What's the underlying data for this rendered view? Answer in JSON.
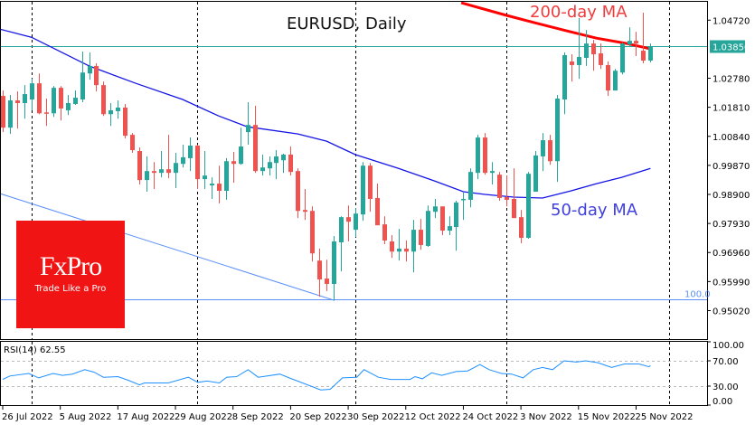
{
  "chart_data": {
    "type": "candlestick",
    "title": "EURUSD, Daily",
    "symbol": "EURUSD",
    "timeframe": "Daily",
    "ylim": [
      0.945,
      1.0539
    ],
    "price_ticks": [
      "1.04720",
      "1.02780",
      "1.01810",
      "1.00840",
      "0.99870",
      "0.98900",
      "0.97930",
      "0.96960",
      "0.95990",
      "0.95020"
    ],
    "current_price": "1.03850",
    "date_labels": [
      {
        "i": 0,
        "label": "26 Jul 2022"
      },
      {
        "i": 8,
        "label": "5 Aug 2022"
      },
      {
        "i": 16,
        "label": "17 Aug 2022"
      },
      {
        "i": 24,
        "label": "29 Aug 2022"
      },
      {
        "i": 32,
        "label": "8 Sep 2022"
      },
      {
        "i": 40,
        "label": "20 Sep 2022"
      },
      {
        "i": 48,
        "label": "30 Sep 2022"
      },
      {
        "i": 56,
        "label": "12 Oct 2022"
      },
      {
        "i": 64,
        "label": "24 Oct 2022"
      },
      {
        "i": 72,
        "label": "3 Nov 2022"
      },
      {
        "i": 80,
        "label": "15 Nov 2022"
      },
      {
        "i": 88,
        "label": "25 Nov 2022"
      }
    ],
    "period_separators": [
      4,
      27,
      49,
      70,
      92.6
    ],
    "ohlc": [
      [
        1.0219,
        1.0237,
        1.0098,
        1.0113
      ],
      [
        1.0113,
        1.0222,
        1.0092,
        1.0204
      ],
      [
        1.0204,
        1.0234,
        1.011,
        1.0195
      ],
      [
        1.0195,
        1.0255,
        1.0143,
        1.0225
      ],
      [
        1.0207,
        1.0276,
        1.0171,
        1.0261
      ],
      [
        1.0261,
        1.0294,
        1.0158,
        1.0161
      ],
      [
        1.0164,
        1.021,
        1.0119,
        1.0161
      ],
      [
        1.0161,
        1.0252,
        1.0149,
        1.0246
      ],
      [
        1.0246,
        1.0252,
        1.0137,
        1.0177
      ],
      [
        1.0171,
        1.0222,
        1.0155,
        1.0195
      ],
      [
        1.0192,
        1.0237,
        1.0189,
        1.0213
      ],
      [
        1.0207,
        1.0367,
        1.0198,
        1.0297
      ],
      [
        1.0294,
        1.0364,
        1.0273,
        1.0319
      ],
      [
        1.0319,
        1.0328,
        1.0234,
        1.0255
      ],
      [
        1.0255,
        1.0267,
        1.0152,
        1.0158
      ],
      [
        1.0158,
        1.0195,
        1.0119,
        1.0171
      ],
      [
        1.0168,
        1.0204,
        1.0143,
        1.018
      ],
      [
        1.018,
        1.0192,
        1.0077,
        1.0086
      ],
      [
        1.0089,
        1.0095,
        1.0029,
        1.0038
      ],
      [
        1.0035,
        1.0047,
        0.9923,
        0.9938
      ],
      [
        0.9938,
        1.0017,
        0.9899,
        0.9968
      ],
      [
        0.9968,
        0.9998,
        0.9908,
        0.9962
      ],
      [
        0.9962,
        1.0035,
        0.9947,
        0.9974
      ],
      [
        0.9974,
        1.0089,
        0.9944,
        0.9962
      ],
      [
        0.9962,
        1.0029,
        0.9911,
        0.9995
      ],
      [
        0.9992,
        1.0056,
        0.998,
        1.0014
      ],
      [
        1.0011,
        1.008,
        0.9968,
        1.0053
      ],
      [
        1.0053,
        1.0056,
        0.9908,
        0.9941
      ],
      [
        0.9941,
        1.0035,
        0.9908,
        0.9953
      ],
      [
        0.992,
        0.9947,
        0.9875,
        0.9926
      ],
      [
        0.9926,
        0.9986,
        0.986,
        0.9902
      ],
      [
        0.9902,
        1.0011,
        0.9872,
        1.0001
      ],
      [
        1.0001,
        1.0032,
        0.9929,
        0.9992
      ],
      [
        0.9992,
        1.0113,
        0.9989,
        1.005
      ],
      [
        1.0098,
        1.0198,
        1.0056,
        1.0122
      ],
      [
        1.0122,
        1.0186,
        0.9962,
        0.9968
      ],
      [
        0.9968,
        1.0023,
        0.9953,
        0.998
      ],
      [
        0.9977,
        1.0017,
        0.9953,
        0.9998
      ],
      [
        0.9995,
        1.0038,
        0.9941,
        1.0017
      ],
      [
        1.0004,
        1.0026,
        0.9962,
        1.0023
      ],
      [
        1.0023,
        1.005,
        0.9953,
        0.9965
      ],
      [
        0.9968,
        0.9977,
        0.9811,
        0.9835
      ],
      [
        0.9838,
        0.9908,
        0.9805,
        0.9832
      ],
      [
        0.9835,
        0.985,
        0.9666,
        0.9693
      ],
      [
        0.9669,
        0.9709,
        0.9548,
        0.9606
      ],
      [
        0.9609,
        0.9672,
        0.9567,
        0.9591
      ],
      [
        0.9591,
        0.9751,
        0.9536,
        0.9733
      ],
      [
        0.973,
        0.9817,
        0.9633,
        0.9814
      ],
      [
        0.9814,
        0.9853,
        0.9733,
        0.9799
      ],
      [
        0.9772,
        0.9844,
        0.9748,
        0.9826
      ],
      [
        0.9823,
        0.9998,
        0.9802,
        0.9986
      ],
      [
        0.9986,
        0.9995,
        0.9832,
        0.9875
      ],
      [
        0.9878,
        0.9926,
        0.9787,
        0.9787
      ],
      [
        0.979,
        0.9817,
        0.9724,
        0.9736
      ],
      [
        0.9733,
        0.9754,
        0.9678,
        0.9699
      ],
      [
        0.9699,
        0.9775,
        0.9669,
        0.9709
      ],
      [
        0.9709,
        0.9736,
        0.9666,
        0.9699
      ],
      [
        0.9699,
        0.9805,
        0.963,
        0.9772
      ],
      [
        0.9772,
        0.9808,
        0.9705,
        0.9721
      ],
      [
        0.9718,
        0.9853,
        0.9715,
        0.9835
      ],
      [
        0.9832,
        0.9875,
        0.9811,
        0.985
      ],
      [
        0.985,
        0.985,
        0.9754,
        0.9769
      ],
      [
        0.9769,
        0.9817,
        0.9754,
        0.9784
      ],
      [
        0.9781,
        0.9869,
        0.9702,
        0.9863
      ],
      [
        0.9872,
        0.9896,
        0.9805,
        0.9875
      ],
      [
        0.9872,
        0.9977,
        0.9847,
        0.9965
      ],
      [
        0.9962,
        1.0089,
        0.9941,
        1.008
      ],
      [
        1.008,
        1.0095,
        0.9956,
        0.9962
      ],
      [
        0.9962,
        0.9998,
        0.9923,
        0.9968
      ],
      [
        0.9956,
        0.9965,
        0.9869,
        0.9878
      ],
      [
        0.9881,
        0.9953,
        0.985,
        0.9872
      ],
      [
        0.9875,
        0.9977,
        0.9811,
        0.9811
      ],
      [
        0.9814,
        0.9838,
        0.9727,
        0.9745
      ],
      [
        0.9745,
        0.9965,
        0.9742,
        0.9959
      ],
      [
        0.9899,
        1.0035,
        0.9899,
        1.002
      ],
      [
        1.0017,
        1.0095,
        0.9968,
        1.0071
      ],
      [
        1.0071,
        1.0089,
        0.9989,
        1.0001
      ],
      [
        1.0001,
        1.0222,
        0.9932,
        1.021
      ],
      [
        1.0207,
        1.0364,
        1.0158,
        1.0355
      ],
      [
        1.0334,
        1.0358,
        1.0267,
        1.0322
      ],
      [
        1.0322,
        1.0479,
        1.0276,
        1.0349
      ],
      [
        1.0346,
        1.0439,
        1.0319,
        1.0394
      ],
      [
        1.0394,
        1.0406,
        1.0303,
        1.0358
      ],
      [
        1.0361,
        1.0394,
        1.0309,
        1.0322
      ],
      [
        1.0322,
        1.0334,
        1.0219,
        1.0237
      ],
      [
        1.0237,
        1.0309,
        1.0237,
        1.0303
      ],
      [
        1.0297,
        1.0397,
        1.0291,
        1.0394
      ],
      [
        1.0391,
        1.0448,
        1.0382,
        1.0403
      ],
      [
        1.0403,
        1.0433,
        1.0352,
        1.0394
      ],
      [
        1.037,
        1.0497,
        1.0328,
        1.0337
      ],
      [
        1.0337,
        1.0394,
        1.0331,
        1.0385
      ]
    ],
    "ma50": {
      "label": "50-day MA",
      "color": "#1414e6",
      "points": [
        [
          -0.4,
          1.0442
        ],
        [
          4,
          1.0415
        ],
        [
          12,
          1.0319
        ],
        [
          18.5,
          1.0261
        ],
        [
          25,
          1.0207
        ],
        [
          30,
          1.0152
        ],
        [
          34,
          1.0116
        ],
        [
          41,
          1.0092
        ],
        [
          45,
          1.0068
        ],
        [
          49,
          1.0023
        ],
        [
          55,
          0.9977
        ],
        [
          60,
          0.9935
        ],
        [
          64,
          0.9899
        ],
        [
          67,
          0.989
        ],
        [
          71,
          0.9881
        ],
        [
          75,
          0.9878
        ],
        [
          79,
          0.9902
        ],
        [
          82.5,
          0.9926
        ],
        [
          86,
          0.9947
        ],
        [
          90,
          0.9977
        ]
      ]
    },
    "ma200": {
      "label": "200-day MA",
      "color": "#ff0000",
      "points": [
        [
          63.7,
          1.053
        ],
        [
          70,
          1.0488
        ],
        [
          74,
          1.0463
        ],
        [
          78.4,
          1.0436
        ],
        [
          82.5,
          1.0412
        ],
        [
          86.7,
          1.0394
        ],
        [
          90,
          1.0376
        ]
      ]
    },
    "trendline": {
      "color": "#5b8ff9",
      "points": [
        [
          -0.4,
          0.9893
        ],
        [
          46.1,
          0.9536
        ]
      ]
    },
    "fibo_level": {
      "label": "100.0",
      "value": 0.9539,
      "color": "#5b8ff9"
    },
    "rsi": {
      "label": "RSI(14) 62.55",
      "ticks": [
        "100.00",
        "70.00",
        "30.00",
        "0.00"
      ],
      "levels": [
        70,
        30
      ],
      "color": "#1e90ff",
      "points": [
        [
          0,
          40.5
        ],
        [
          1,
          46
        ],
        [
          3.6,
          50
        ],
        [
          5,
          43
        ],
        [
          7,
          50
        ],
        [
          8.3,
          47
        ],
        [
          9.7,
          49
        ],
        [
          11.4,
          56
        ],
        [
          12.7,
          52
        ],
        [
          14,
          44
        ],
        [
          16,
          45
        ],
        [
          17.4,
          39.5
        ],
        [
          19,
          32
        ],
        [
          19.7,
          35
        ],
        [
          23,
          35
        ],
        [
          25.8,
          44
        ],
        [
          27.1,
          36
        ],
        [
          28.4,
          38
        ],
        [
          30.1,
          35
        ],
        [
          31.1,
          44
        ],
        [
          32.5,
          45
        ],
        [
          34.1,
          56
        ],
        [
          35.5,
          44
        ],
        [
          38.5,
          49
        ],
        [
          39.8,
          43
        ],
        [
          41.2,
          37
        ],
        [
          44.2,
          24
        ],
        [
          45.5,
          25
        ],
        [
          47.2,
          43
        ],
        [
          49.2,
          44
        ],
        [
          50.2,
          56
        ],
        [
          52.2,
          44
        ],
        [
          53.9,
          40.5
        ],
        [
          56.6,
          40.5
        ],
        [
          57.3,
          45
        ],
        [
          58.3,
          41.5
        ],
        [
          59.6,
          51
        ],
        [
          61,
          47
        ],
        [
          63,
          53
        ],
        [
          64.6,
          54
        ],
        [
          66.3,
          64
        ],
        [
          67.6,
          56
        ],
        [
          69.3,
          50
        ],
        [
          70.7,
          49
        ],
        [
          72.3,
          43
        ],
        [
          73.7,
          56
        ],
        [
          75,
          59.5
        ],
        [
          76.4,
          56
        ],
        [
          78,
          70
        ],
        [
          79.7,
          68
        ],
        [
          81,
          70
        ],
        [
          82.7,
          67
        ],
        [
          84.6,
          59.5
        ],
        [
          86.4,
          65
        ],
        [
          88.4,
          65
        ],
        [
          89.8,
          60.5
        ],
        [
          90,
          62.55
        ]
      ]
    },
    "colors": {
      "up": "#26a69a",
      "down": "#ef5350",
      "price_line": "#26a69a",
      "separator": "#000000"
    }
  },
  "annotations": {
    "ma200_label": "200-day MA",
    "ma50_label": "50-day MA"
  },
  "logo": {
    "brand": "FxPro",
    "tagline": "Trade Like a Pro"
  }
}
